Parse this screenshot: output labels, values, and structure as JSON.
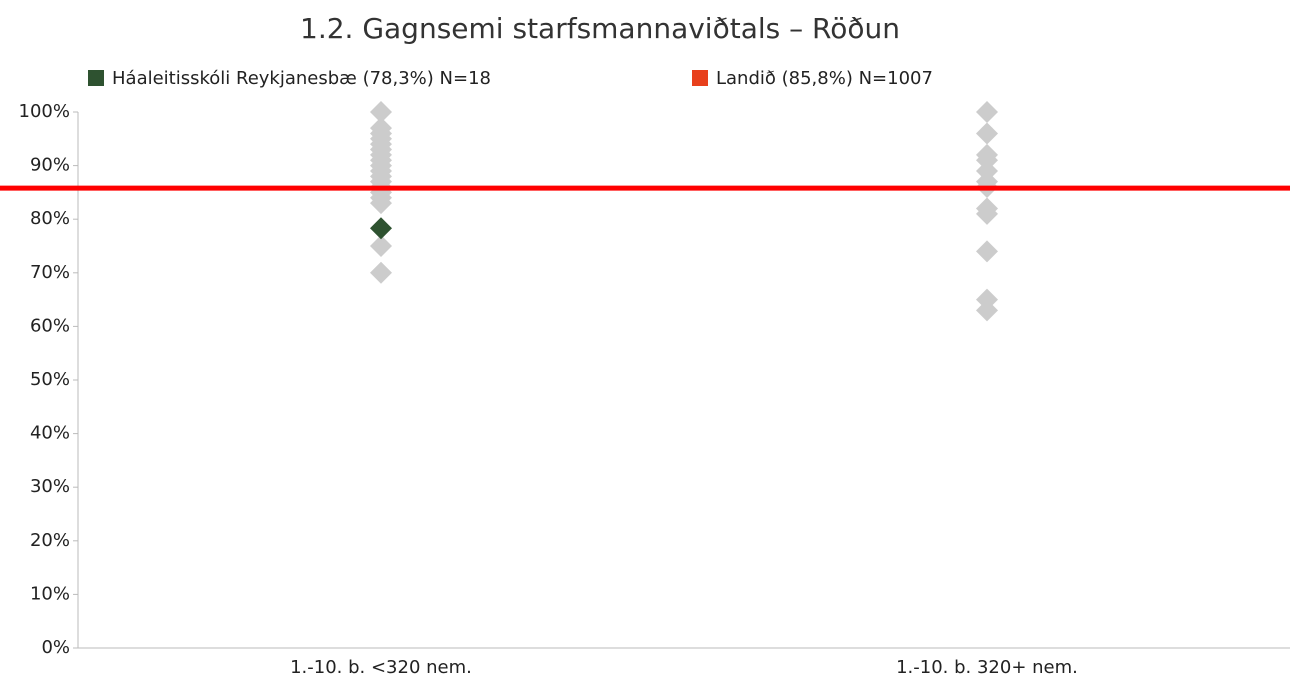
{
  "chart_data": {
    "type": "strip",
    "title": "1.2. Gagnsemi starfsmannaviðtals – Röðun",
    "categories": [
      "1.-10. b. <320 nem.",
      "1.-10. b. 320+ nem."
    ],
    "others": {
      "color": "#cccccc",
      "values": [
        [
          100,
          97,
          96,
          95,
          94,
          93,
          92,
          91,
          90,
          89,
          88,
          87,
          86,
          85,
          84,
          83,
          75,
          70
        ],
        [
          100,
          96,
          92,
          91,
          89,
          87,
          86,
          82,
          81,
          74,
          65,
          63
        ]
      ]
    },
    "series": [
      {
        "name": "Háaleitisskóli Reykjanesbæ (78,3%) N=18",
        "color": "#2e5230",
        "values": [
          78.3,
          null
        ]
      }
    ],
    "reference": {
      "name": "Landið (85,8%) N=1007",
      "color": "#ff0000",
      "legend_color": "#e8401c",
      "value": 85.8
    },
    "ylim": [
      0,
      100
    ],
    "yticks": [
      {
        "value": 0,
        "label": "0%"
      },
      {
        "value": 10,
        "label": "10%"
      },
      {
        "value": 20,
        "label": "20%"
      },
      {
        "value": 30,
        "label": "30%"
      },
      {
        "value": 40,
        "label": "40%"
      },
      {
        "value": 50,
        "label": "50%"
      },
      {
        "value": 60,
        "label": "60%"
      },
      {
        "value": 70,
        "label": "70%"
      },
      {
        "value": 80,
        "label": "80%"
      },
      {
        "value": 90,
        "label": "90%"
      },
      {
        "value": 100,
        "label": "100%"
      }
    ]
  }
}
